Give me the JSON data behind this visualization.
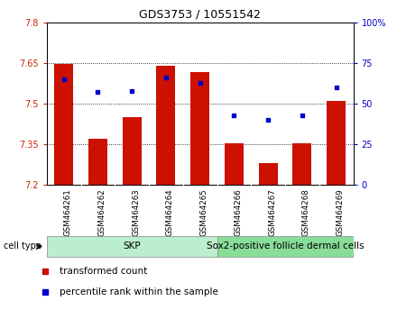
{
  "title": "GDS3753 / 10551542",
  "samples": [
    "GSM464261",
    "GSM464262",
    "GSM464263",
    "GSM464264",
    "GSM464265",
    "GSM464266",
    "GSM464267",
    "GSM464268",
    "GSM464269"
  ],
  "transformed_counts": [
    7.645,
    7.37,
    7.45,
    7.64,
    7.615,
    7.355,
    7.28,
    7.355,
    7.51
  ],
  "percentile_ranks": [
    65,
    57,
    58,
    66,
    63,
    43,
    40,
    43,
    60
  ],
  "ylim_left": [
    7.2,
    7.8
  ],
  "ylim_right": [
    0,
    100
  ],
  "yticks_left": [
    7.2,
    7.35,
    7.5,
    7.65,
    7.8
  ],
  "yticks_right": [
    0,
    25,
    50,
    75,
    100
  ],
  "ytick_labels_left": [
    "7.2",
    "7.35",
    "7.5",
    "7.65",
    "7.8"
  ],
  "ytick_labels_right": [
    "0",
    "25",
    "50",
    "75",
    "100%"
  ],
  "bar_color": "#cc1100",
  "dot_color": "#0000cc",
  "cell_type_label": "cell type",
  "group1_label": "SKP",
  "group2_label": "Sox2-positive follicle dermal cells",
  "group1_color": "#bbeecc",
  "group2_color": "#88dd99",
  "group1_count": 5,
  "group2_count": 4,
  "legend_bar_label": "transformed count",
  "legend_dot_label": "percentile rank within the sample",
  "bar_bottom": 7.2,
  "left_tick_color": "#cc2200",
  "right_tick_color": "#0000cc",
  "background_color": "#ffffff",
  "grid_yticks": [
    7.35,
    7.5,
    7.65
  ]
}
